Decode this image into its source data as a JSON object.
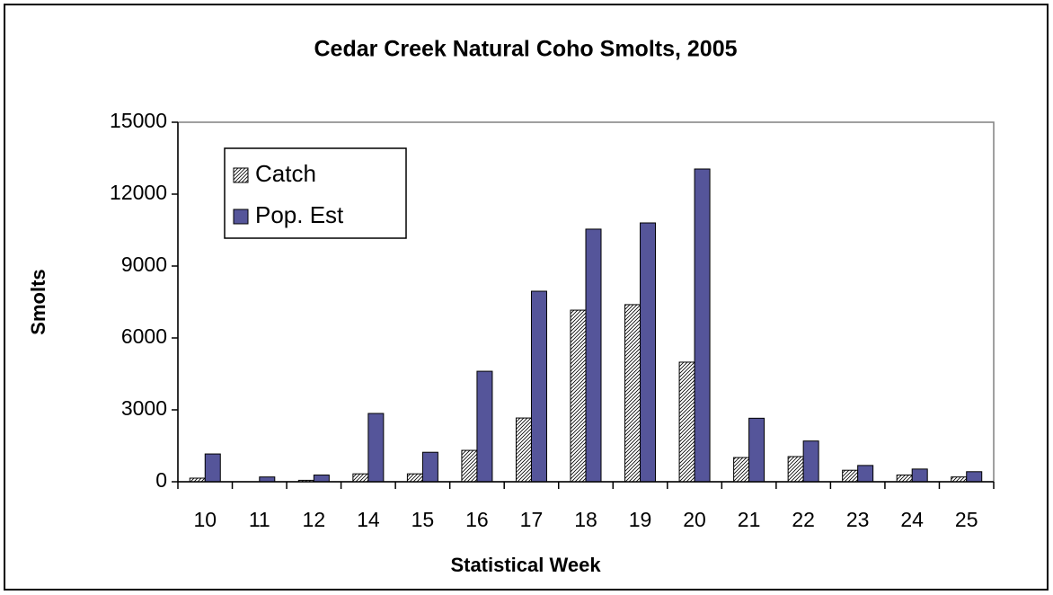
{
  "chart_data": {
    "type": "bar",
    "title": "Cedar Creek  Natural Coho Smolts, 2005",
    "x_label": "Statistical Week",
    "y_label": "Smolts",
    "categories": [
      "10",
      "11",
      "12",
      "14",
      "15",
      "16",
      "17",
      "18",
      "19",
      "20",
      "21",
      "22",
      "23",
      "24",
      "25"
    ],
    "series": [
      {
        "name": "Catch",
        "color": "#ffffff",
        "pattern": "hatch",
        "values": [
          150,
          0,
          60,
          330,
          330,
          1310,
          2660,
          7160,
          7390,
          4990,
          1010,
          1050,
          480,
          280,
          200
        ]
      },
      {
        "name": "Pop. Est",
        "color": "#55559a",
        "values": [
          1160,
          200,
          280,
          2850,
          1230,
          4610,
          7950,
          10540,
          10800,
          13050,
          2650,
          1700,
          680,
          530,
          420
        ]
      }
    ],
    "ylim": [
      0,
      15000
    ],
    "yticks": [
      0,
      3000,
      6000,
      9000,
      12000,
      15000
    ],
    "grid": false,
    "legend": "upper left"
  }
}
